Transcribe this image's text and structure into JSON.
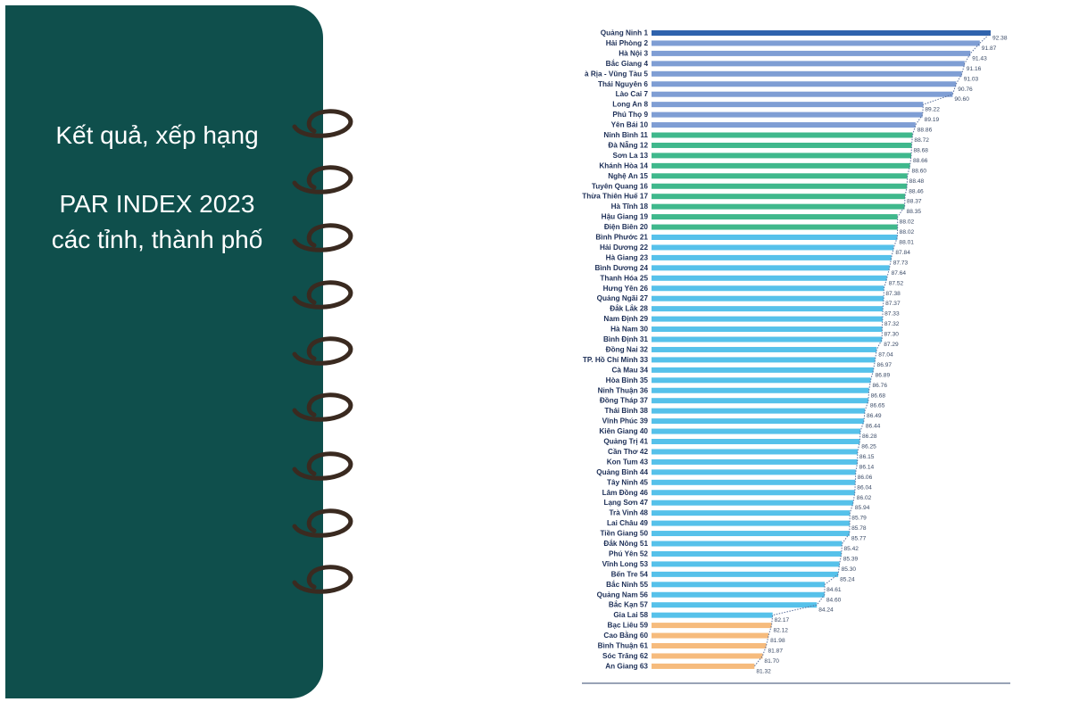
{
  "cover": {
    "line1": "Kết quả, xếp hạng",
    "line2": "PAR INDEX 2023",
    "line3": "các tỉnh, thành phố"
  },
  "colors": {
    "cover_bg": "#0f4f4c",
    "ring": "#3a2a20",
    "tier_top": "#2f63ad",
    "tier_blue": "#7f9ed4",
    "tier_green": "#3fb88c",
    "tier_sky": "#56c1ea",
    "tier_orange": "#f6bb7d"
  },
  "chart_data": {
    "type": "bar",
    "orientation": "horizontal",
    "categories": [
      "Quảng Ninh 1",
      "Hải Phòng 2",
      "Hà Nội 3",
      "Bắc Giang 4",
      "à Rịa - Vũng Tàu 5",
      "Thái Nguyên 6",
      "Lào Cai 7",
      "Long An 8",
      "Phú Thọ 9",
      "Yên Bái 10",
      "Ninh Bình 11",
      "Đà Nẵng 12",
      "Sơn La 13",
      "Khánh Hòa 14",
      "Nghệ An 15",
      "Tuyên Quang 16",
      "Thừa Thiên Huế 17",
      "Hà Tĩnh 18",
      "Hậu Giang 19",
      "Điện Biên 20",
      "Bình Phước 21",
      "Hải Dương 22",
      "Hà Giang 23",
      "Bình Dương 24",
      "Thanh Hóa 25",
      "Hưng Yên 26",
      "Quảng Ngãi 27",
      "Đắk Lắk 28",
      "Nam Định 29",
      "Hà Nam 30",
      "Bình Định 31",
      "Đồng Nai 32",
      "TP. Hồ Chí Minh 33",
      "Cà Mau 34",
      "Hòa Bình 35",
      "Ninh Thuận 36",
      "Đồng Tháp 37",
      "Thái Bình 38",
      "Vĩnh Phúc 39",
      "Kiên Giang 40",
      "Quảng Trị 41",
      "Cần Thơ 42",
      "Kon Tum 43",
      "Quảng Bình 44",
      "Tây Ninh 45",
      "Lâm Đồng 46",
      "Lạng Sơn 47",
      "Trà Vinh 48",
      "Lai Châu 49",
      "Tiền Giang 50",
      "Đắk Nông 51",
      "Phú Yên 52",
      "Vĩnh Long 53",
      "Bến Tre 54",
      "Bắc Ninh 55",
      "Quảng Nam 56",
      "Bắc Kạn 57",
      "Gia Lai 58",
      "Bạc Liêu 59",
      "Cao Bằng 60",
      "Bình Thuận 61",
      "Sóc Trăng 62",
      "An Giang 63"
    ],
    "values": [
      92.38,
      91.87,
      91.43,
      91.16,
      91.03,
      90.76,
      90.6,
      89.22,
      89.19,
      88.86,
      88.72,
      88.68,
      88.66,
      88.6,
      88.48,
      88.46,
      88.37,
      88.35,
      88.02,
      88.02,
      88.01,
      87.84,
      87.73,
      87.64,
      87.52,
      87.38,
      87.37,
      87.33,
      87.32,
      87.3,
      87.29,
      87.04,
      86.97,
      86.89,
      86.76,
      86.68,
      86.65,
      86.49,
      86.44,
      86.28,
      86.25,
      86.15,
      86.14,
      86.06,
      86.04,
      86.02,
      85.94,
      85.79,
      85.78,
      85.77,
      85.42,
      85.39,
      85.3,
      85.24,
      84.61,
      84.6,
      84.24,
      82.17,
      82.12,
      81.98,
      81.87,
      81.7,
      81.32
    ],
    "value_labels": [
      "92.38",
      "91.87",
      "91.43",
      "91.16",
      "91.03",
      "90.76",
      "90.60",
      "89.22",
      "89.19",
      "88.86",
      "88.72",
      "88.68",
      "88.66",
      "88.60",
      "88.48",
      "88.46",
      "88.37",
      "88.35",
      "88.02",
      "88.02",
      "88.01",
      "87.84",
      "87.73",
      "87.64",
      "87.52",
      "87.38",
      "87.37",
      "87.33",
      "87.32",
      "87.30",
      "87.29",
      "87.04",
      "86.97",
      "86.89",
      "86.76",
      "86.68",
      "86.65",
      "86.49",
      "86.44",
      "86.28",
      "86.25",
      "86.15",
      "86.14",
      "86.06",
      "86.04",
      "86.02",
      "85.94",
      "85.79",
      "85.78",
      "85.77",
      "85.42",
      "85.39",
      "85.30",
      "85.24",
      "84.61",
      "84.60",
      "84.24",
      "82.17",
      "82.12",
      "81.98",
      "81.87",
      "81.70",
      "81.32"
    ],
    "tiers": [
      "top",
      "blue",
      "blue",
      "blue",
      "blue",
      "blue",
      "blue",
      "blue",
      "blue",
      "blue",
      "green",
      "green",
      "green",
      "green",
      "green",
      "green",
      "green",
      "green",
      "green",
      "green",
      "sky",
      "sky",
      "sky",
      "sky",
      "sky",
      "sky",
      "sky",
      "sky",
      "sky",
      "sky",
      "sky",
      "sky",
      "sky",
      "sky",
      "sky",
      "sky",
      "sky",
      "sky",
      "sky",
      "sky",
      "sky",
      "sky",
      "sky",
      "sky",
      "sky",
      "sky",
      "sky",
      "sky",
      "sky",
      "sky",
      "sky",
      "sky",
      "sky",
      "sky",
      "sky",
      "sky",
      "sky",
      "sky",
      "orange",
      "orange",
      "orange",
      "orange",
      "orange"
    ],
    "xlim": [
      76.5,
      92.38
    ],
    "grid": false,
    "legend": "none"
  }
}
